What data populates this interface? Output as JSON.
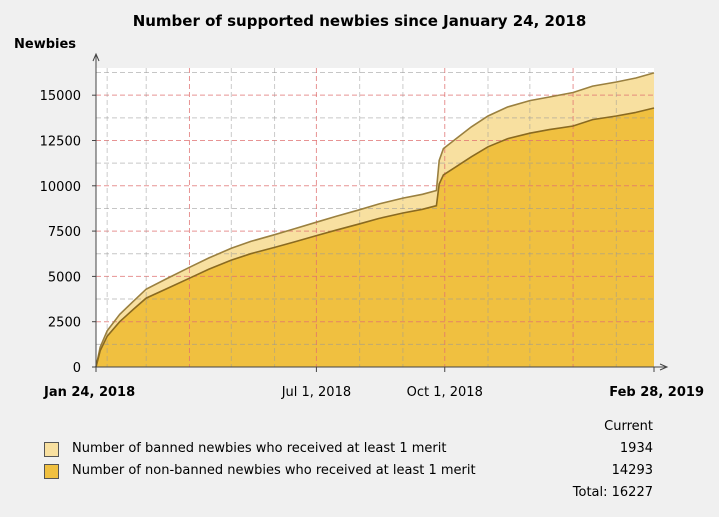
{
  "chart_data": {
    "type": "area",
    "title": "Number of supported newbies since January 24, 2018",
    "ylabel": "Newbies",
    "xlabel": "",
    "ylim": [
      0,
      16500
    ],
    "y_ticks": [
      0,
      2500,
      5000,
      7500,
      10000,
      12500,
      15000
    ],
    "x_range": [
      "2018-01-24",
      "2019-02-28"
    ],
    "x_tick_labels": [
      {
        "date": "2018-01-24",
        "label": "Jan 24, 2018",
        "bold": true
      },
      {
        "date": "2018-07-01",
        "label": "Jul 1, 2018",
        "bold": false
      },
      {
        "date": "2018-10-01",
        "label": "Oct 1, 2018",
        "bold": false
      },
      {
        "date": "2019-02-28",
        "label": "Feb 28, 2019",
        "bold": true
      }
    ],
    "stacked": true,
    "grid": true,
    "legend_placement": "bottom",
    "x": [
      "2018-01-24",
      "2018-01-27",
      "2018-02-01",
      "2018-02-10",
      "2018-02-20",
      "2018-03-01",
      "2018-03-15",
      "2018-04-01",
      "2018-04-15",
      "2018-05-01",
      "2018-05-15",
      "2018-06-01",
      "2018-06-15",
      "2018-07-01",
      "2018-07-15",
      "2018-08-01",
      "2018-08-15",
      "2018-09-01",
      "2018-09-15",
      "2018-09-25",
      "2018-09-27",
      "2018-09-30",
      "2018-10-10",
      "2018-10-20",
      "2018-11-01",
      "2018-11-15",
      "2018-12-01",
      "2018-12-15",
      "2019-01-01",
      "2019-01-15",
      "2019-02-01",
      "2019-02-15",
      "2019-02-28"
    ],
    "series": [
      {
        "name": "Number of non-banned newbies who received at least 1 merit",
        "color": "#f0c040",
        "values": [
          0,
          900,
          1700,
          2500,
          3200,
          3800,
          4300,
          4900,
          5400,
          5900,
          6250,
          6600,
          6900,
          7250,
          7550,
          7900,
          8200,
          8500,
          8700,
          8900,
          10100,
          10600,
          11100,
          11600,
          12150,
          12600,
          12900,
          13100,
          13300,
          13650,
          13850,
          14050,
          14293
        ]
      },
      {
        "name": "Number of banned newbies who received at least 1 merit",
        "color": "#f8e0a0",
        "values": [
          0,
          200,
          300,
          400,
          450,
          500,
          550,
          600,
          620,
          650,
          680,
          700,
          720,
          740,
          760,
          780,
          800,
          820,
          830,
          840,
          1300,
          1450,
          1550,
          1650,
          1700,
          1750,
          1800,
          1800,
          1850,
          1850,
          1880,
          1900,
          1934
        ]
      }
    ]
  },
  "legend": {
    "header": "Current",
    "items": [
      {
        "label": "Number of banned newbies who received at least 1 merit",
        "value": "1934",
        "color": "#f8e0a0"
      },
      {
        "label": "Number of non-banned newbies who received at least 1 merit",
        "value": "14293",
        "color": "#f0c040"
      }
    ],
    "total": "Total: 16227"
  }
}
